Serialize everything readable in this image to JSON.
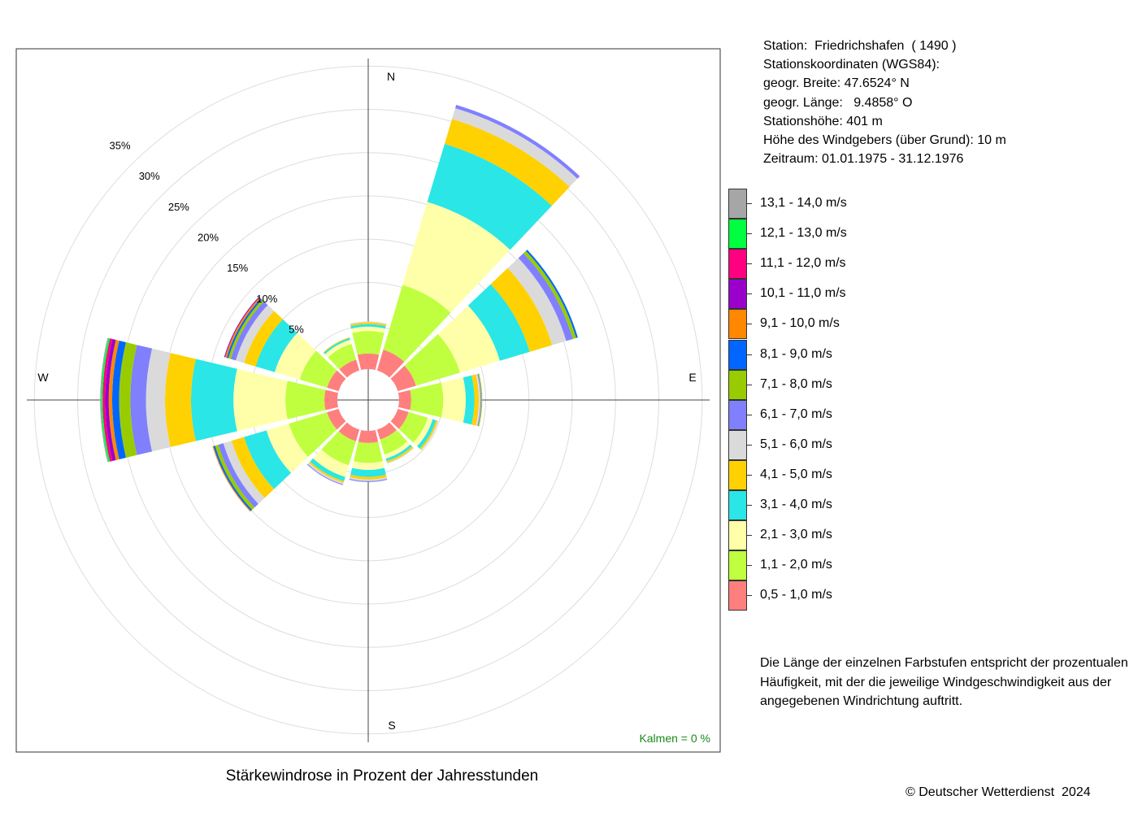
{
  "info": {
    "station": "Station:  Friedrichshafen  ( 1490 )",
    "coords_heading": "Stationskoordinaten (WGS84):",
    "latitude": "geogr. Breite: 47.6524° N",
    "longitude": "geogr. Länge:   9.4858° O",
    "elevation": "Stationshöhe: 401 m",
    "sensor_height": "Höhe des Windgebers (über Grund): 10 m",
    "period": "Zeitraum: 01.01.1975 - 31.12.1976"
  },
  "note": "Die Länge der einzelnen Farbstufen entspricht der prozentualen Häufigkeit, mit der die jeweilige Windgeschwindigkeit aus der angegebenen Windrichtung auftritt.",
  "copyright": "© Deutscher Wetterdienst  2024",
  "chart_data": {
    "type": "wind-rose",
    "title": "Stärkewindrose in Prozent der Jahresstunden",
    "compass": {
      "N": "N",
      "E": "E",
      "S": "S",
      "W": "W"
    },
    "calm_label": "Kalmen  =  0 %",
    "rings": [
      5,
      10,
      15,
      20,
      25,
      30,
      35
    ],
    "ring_labels": [
      "5%",
      "10%",
      "15%",
      "20%",
      "25%",
      "30%",
      "35%"
    ],
    "grid": true,
    "sector_width_deg": 30,
    "speed_classes": [
      {
        "label": "0,5 - 1,0 m/s",
        "color": "#FF7F7F"
      },
      {
        "label": "1,1 - 2,0 m/s",
        "color": "#BFFF3F"
      },
      {
        "label": "2,1 - 3,0 m/s",
        "color": "#FFFFAA"
      },
      {
        "label": "3,1 - 4,0 m/s",
        "color": "#2AE6E6"
      },
      {
        "label": "4,1 - 5,0 m/s",
        "color": "#FFD100"
      },
      {
        "label": "5,1 - 6,0 m/s",
        "color": "#DADADA"
      },
      {
        "label": "6,1 - 7,0 m/s",
        "color": "#8080FF"
      },
      {
        "label": "7,1 - 8,0 m/s",
        "color": "#99CC00"
      },
      {
        "label": "8,1 - 9,0 m/s",
        "color": "#0066FF"
      },
      {
        "label": "9,1 - 10,0 m/s",
        "color": "#FF8800"
      },
      {
        "label": "10,1 - 11,0 m/s",
        "color": "#9900CC"
      },
      {
        "label": "11,1 - 12,0 m/s",
        "color": "#FF0080"
      },
      {
        "label": "12,1 - 13,0 m/s",
        "color": "#00FF40"
      },
      {
        "label": "13,1 - 14,0 m/s",
        "color": "#A6A6A6"
      }
    ],
    "sectors": [
      {
        "direction_deg": 0,
        "values": [
          1.8,
          2.6,
          0.5,
          0.3,
          0.2,
          0.1
        ]
      },
      {
        "direction_deg": 30,
        "values": [
          2.5,
          7.8,
          10.0,
          7.0,
          3.0,
          1.3,
          0.4
        ]
      },
      {
        "direction_deg": 60,
        "values": [
          2.2,
          5.3,
          4.8,
          3.6,
          2.7,
          1.7,
          0.8,
          0.4,
          0.2
        ]
      },
      {
        "direction_deg": 90,
        "values": [
          1.4,
          3.7,
          2.6,
          1.0,
          0.5,
          0.2,
          0.1,
          0.1
        ]
      },
      {
        "direction_deg": 120,
        "values": [
          1.3,
          2.3,
          0.6,
          0.4,
          0.2,
          0.1
        ]
      },
      {
        "direction_deg": 150,
        "values": [
          1.2,
          1.8,
          0.5,
          0.3,
          0.2,
          0.1
        ]
      },
      {
        "direction_deg": 180,
        "values": [
          1.4,
          2.3,
          0.8,
          0.8,
          0.3,
          0.2,
          0.1
        ]
      },
      {
        "direction_deg": 210,
        "values": [
          1.4,
          2.9,
          1.4,
          0.5,
          0.2,
          0.2,
          0.1
        ]
      },
      {
        "direction_deg": 240,
        "values": [
          1.4,
          4.6,
          2.7,
          2.7,
          1.5,
          1.0,
          0.6,
          0.4,
          0.2,
          0.1
        ]
      },
      {
        "direction_deg": 270,
        "values": [
          1.5,
          4.5,
          6.0,
          4.9,
          3.0,
          2.2,
          1.8,
          1.3,
          0.8,
          0.4,
          0.4,
          0.3,
          0.2,
          0.1
        ]
      },
      {
        "direction_deg": 300,
        "values": [
          1.4,
          3.3,
          3.0,
          2.3,
          1.4,
          1.0,
          0.6,
          0.3,
          0.2,
          0.2,
          0.1
        ]
      },
      {
        "direction_deg": 330,
        "values": [
          1.3,
          1.9,
          0.5,
          0.2,
          0.1
        ]
      }
    ]
  }
}
